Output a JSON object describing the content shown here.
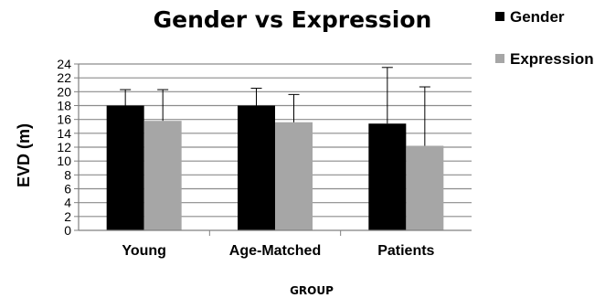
{
  "chart_data": {
    "type": "bar",
    "title": "Gender vs Expression",
    "xlabel": "GROUP",
    "ylabel": "EVD (m)",
    "categories": [
      "Young",
      "Age-Matched",
      "Patients"
    ],
    "series": [
      {
        "name": "Gender",
        "color": "#000000",
        "values": [
          18.0,
          18.0,
          15.4
        ],
        "error": [
          2.3,
          2.5,
          8.1
        ]
      },
      {
        "name": "Expression",
        "color": "#a6a6a6",
        "values": [
          15.8,
          15.6,
          12.2
        ],
        "error": [
          4.5,
          4.0,
          8.5
        ]
      }
    ],
    "ylim": [
      0,
      24
    ],
    "yticks": [
      "0",
      "2",
      "4",
      "6",
      "8",
      "10",
      "12",
      "14",
      "16",
      "18",
      "20",
      "22",
      "24"
    ],
    "grid": true,
    "legend": "top-right"
  }
}
